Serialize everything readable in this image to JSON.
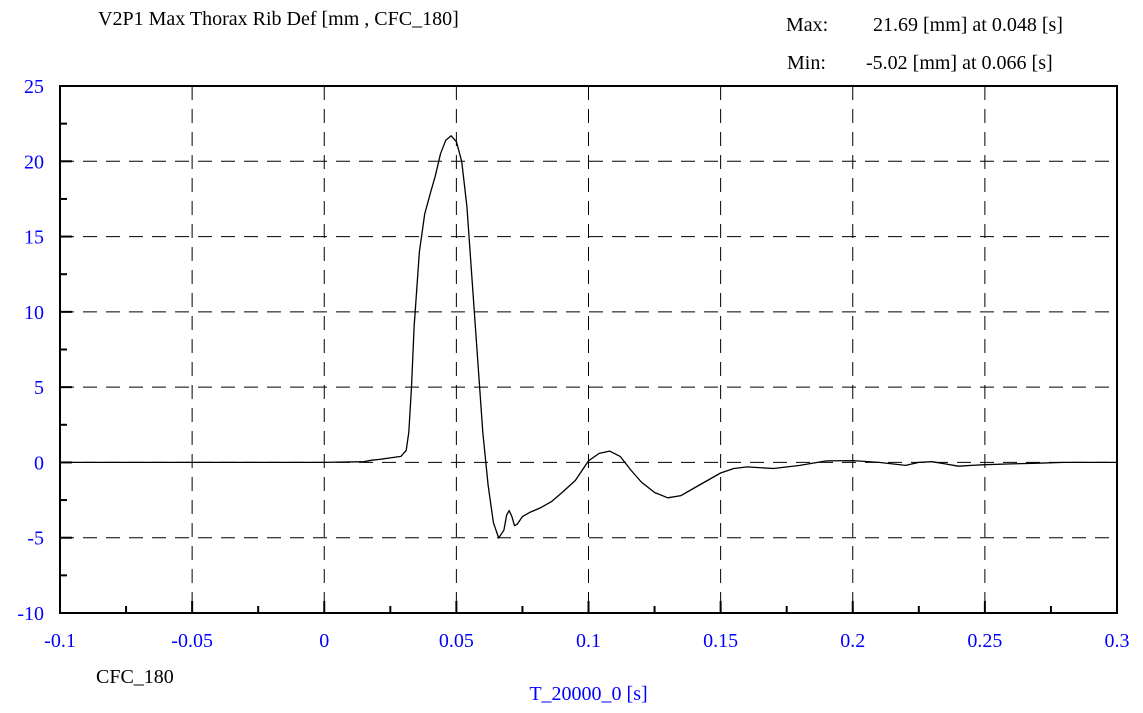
{
  "chart_data": {
    "type": "line",
    "title": "V2P1 Max Thorax Rib Def [mm , CFC_180]",
    "stats": {
      "max_label": "Max:",
      "max_text": "21.69 [mm] at 0.048 [s]",
      "min_label": "Min:",
      "min_text": "-5.02 [mm] at 0.066 [s]"
    },
    "xlabel": "T_20000_0 [s]",
    "filter_label": "CFC_180",
    "xlim": [
      -0.1,
      0.3
    ],
    "ylim": [
      -10,
      25
    ],
    "x_ticks": [
      -0.1,
      -0.05,
      0,
      0.05,
      0.1,
      0.15,
      0.2,
      0.25,
      0.3
    ],
    "x_tick_labels": [
      "-0.1",
      "-0.05",
      "0",
      "0.05",
      "0.1",
      "0.15",
      "0.2",
      "0.25",
      "0.3"
    ],
    "y_ticks": [
      -10,
      -5,
      0,
      5,
      10,
      15,
      20,
      25
    ],
    "y_tick_labels": [
      "-10",
      "-5",
      "0",
      "5",
      "10",
      "15",
      "20",
      "25"
    ],
    "grid": true,
    "tick_label_color": "#0000ff",
    "line_color": "#000000",
    "series": [
      {
        "x": [
          -0.1,
          0.0,
          0.015,
          0.018,
          0.021,
          0.025,
          0.029,
          0.031,
          0.032,
          0.033,
          0.034,
          0.036,
          0.038,
          0.04,
          0.042,
          0.044,
          0.046,
          0.048,
          0.05,
          0.052,
          0.054,
          0.056,
          0.058,
          0.06,
          0.062,
          0.064,
          0.066,
          0.068,
          0.069,
          0.07,
          0.071,
          0.072,
          0.073,
          0.075,
          0.078,
          0.082,
          0.086,
          0.09,
          0.095,
          0.1,
          0.104,
          0.108,
          0.112,
          0.116,
          0.12,
          0.125,
          0.13,
          0.135,
          0.14,
          0.145,
          0.15,
          0.155,
          0.16,
          0.17,
          0.18,
          0.19,
          0.2,
          0.21,
          0.215,
          0.22,
          0.225,
          0.23,
          0.235,
          0.24,
          0.245,
          0.25,
          0.26,
          0.27,
          0.28,
          0.3
        ],
        "y": [
          0,
          0,
          0.05,
          0.15,
          0.2,
          0.3,
          0.4,
          0.8,
          2.0,
          5.0,
          9.0,
          14.0,
          16.5,
          17.8,
          19.0,
          20.5,
          21.4,
          21.69,
          21.3,
          20.0,
          17.0,
          12.0,
          7.0,
          2.0,
          -1.5,
          -4.0,
          -5.02,
          -4.5,
          -3.5,
          -3.2,
          -3.6,
          -4.2,
          -4.1,
          -3.6,
          -3.3,
          -3.0,
          -2.6,
          -2.0,
          -1.2,
          0.1,
          0.6,
          0.75,
          0.4,
          -0.5,
          -1.3,
          -2.0,
          -2.35,
          -2.2,
          -1.7,
          -1.2,
          -0.7,
          -0.4,
          -0.3,
          -0.4,
          -0.2,
          0.1,
          0.12,
          0.0,
          -0.1,
          -0.2,
          0.0,
          0.05,
          -0.1,
          -0.25,
          -0.2,
          -0.15,
          -0.1,
          -0.05,
          0.0,
          0.0
        ]
      }
    ]
  }
}
